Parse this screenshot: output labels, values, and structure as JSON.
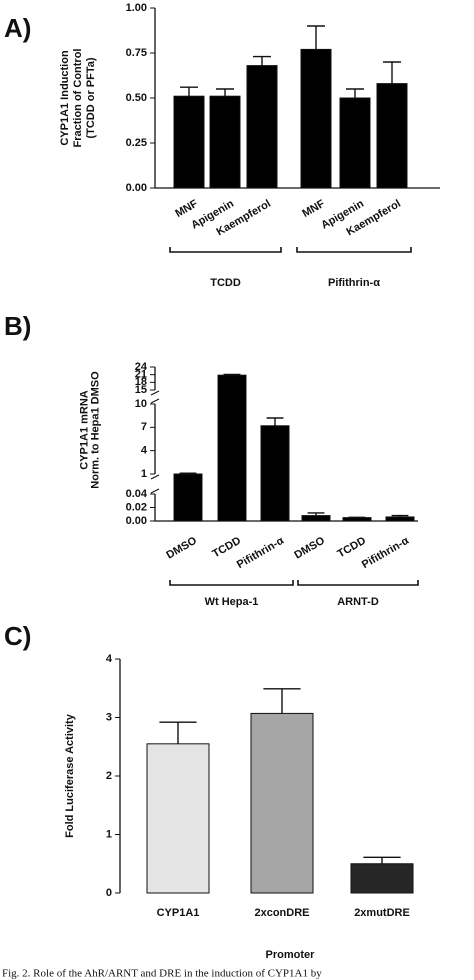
{
  "chart_data": [
    {
      "type": "bar",
      "panel": "A)",
      "y_label": [
        "CYP1A1 Induction",
        "Fraction of Control",
        "(TCDD or PFTa)"
      ],
      "categories": [
        "MNF",
        "Apigenin",
        "Kaempferol",
        "MNF",
        "Apigenin",
        "Kaempferol"
      ],
      "values": [
        0.51,
        0.51,
        0.68,
        0.77,
        0.5,
        0.58
      ],
      "errors": [
        0.05,
        0.04,
        0.05,
        0.13,
        0.05,
        0.12
      ],
      "color": "#000000",
      "groups": [
        "TCDD",
        "Pifithrin-α"
      ],
      "ylim": [
        0,
        1
      ],
      "yticks": [
        {
          "value": 0,
          "label": "0.00"
        },
        {
          "value": 0.25,
          "label": "0.25"
        },
        {
          "value": 0.5,
          "label": "0.50"
        },
        {
          "value": 0.75,
          "label": "0.75"
        },
        {
          "value": 1,
          "label": "1.00"
        }
      ]
    },
    {
      "type": "bar",
      "panel": "B)",
      "y_label": [
        "CYP1A1 mRNA",
        "Norm. to Hepa1 DMSO"
      ],
      "categories": [
        "DMSO",
        "TCDD",
        "Pifithrin-α",
        "DMSO",
        "TCDD",
        "Pifithrin-α"
      ],
      "values": [
        1.0,
        20.8,
        7.2,
        0.008,
        0.005,
        0.006
      ],
      "errors": [
        0.1,
        0.3,
        1.0,
        0.004,
        0.0005,
        0.002
      ],
      "color": "#000000",
      "groups": [
        "Wt Hepa-1",
        "ARNT-D"
      ],
      "ylim": [
        0,
        24
      ],
      "y_segments": [
        [
          0,
          0.04
        ],
        [
          1,
          10
        ],
        [
          15,
          24
        ]
      ],
      "yticks": [
        {
          "value": 0,
          "label": "0.00"
        },
        {
          "value": 0.02,
          "label": "0.02"
        },
        {
          "value": 0.04,
          "label": "0.04"
        },
        1,
        4,
        7,
        10,
        15,
        18,
        21,
        24
      ]
    },
    {
      "type": "bar",
      "panel": "C)",
      "y_label": [
        "Fold Luciferase Activity"
      ],
      "x_label": "Promoter",
      "categories": [
        "CYP1A1",
        "2xconDRE",
        "2xmutDRE"
      ],
      "values": [
        2.55,
        3.07,
        0.5
      ],
      "errors": [
        0.37,
        0.42,
        0.11
      ],
      "colors": [
        "#e4e4e4",
        "#a6a6a6",
        "#262626"
      ],
      "ylim": [
        0,
        4
      ],
      "yticks": [
        0,
        1,
        2,
        3,
        4
      ]
    }
  ],
  "caption": "Fig. 2. Role of the AhR/ARNT and DRE in the induction of CYP1A1 by"
}
